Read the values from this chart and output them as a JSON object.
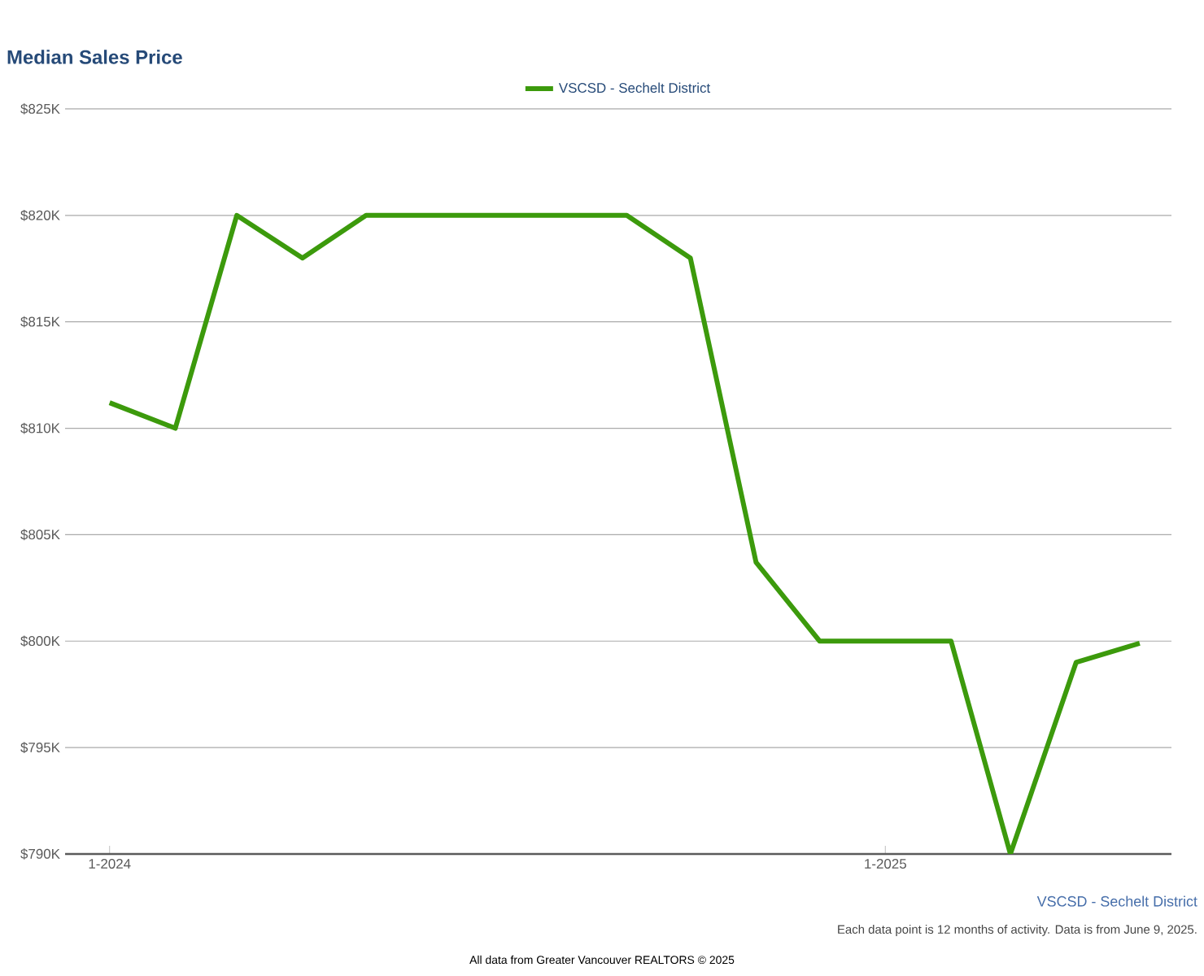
{
  "chart_data": {
    "type": "line",
    "title": "Median Sales Price",
    "x": [
      "2024-01",
      "2024-02",
      "2024-03",
      "2024-04",
      "2024-05",
      "2024-06",
      "2024-07",
      "2024-08",
      "2024-09",
      "2024-10",
      "2024-11",
      "2024-12",
      "2025-01",
      "2025-02",
      "2025-03",
      "2025-04",
      "2025-05"
    ],
    "series": [
      {
        "name": "VSCSD - Sechelt District",
        "color": "#3c9a0c",
        "values": [
          811.2,
          810,
          820,
          818,
          820,
          820,
          820,
          820,
          820,
          818,
          803.7,
          800,
          800,
          800,
          790,
          799,
          799.9
        ]
      }
    ],
    "xlim": [
      "2023-12-11",
      "2025-05-16"
    ],
    "xticks": [
      {
        "value": "2024-01",
        "label": "1-2024"
      },
      {
        "value": "2025-01",
        "label": "1-2025"
      }
    ],
    "ylim": [
      790,
      825
    ],
    "yticks": [
      {
        "value": 790,
        "label": "$790K"
      },
      {
        "value": 795,
        "label": "$795K"
      },
      {
        "value": 800,
        "label": "$800K"
      },
      {
        "value": 805,
        "label": "$805K"
      },
      {
        "value": 810,
        "label": "$810K"
      },
      {
        "value": 815,
        "label": "$815K"
      },
      {
        "value": 820,
        "label": "$820K"
      },
      {
        "value": 825,
        "label": "$825K"
      }
    ],
    "grid": "y",
    "legend": "top",
    "marker": "none",
    "line_style": "solid",
    "annotations": [
      "VSCSD - Sechelt District",
      "Each data point is 12 months of activity. Data is from June 9, 2025.",
      "All data from Greater Vancouver REALTORS © 2025"
    ]
  }
}
